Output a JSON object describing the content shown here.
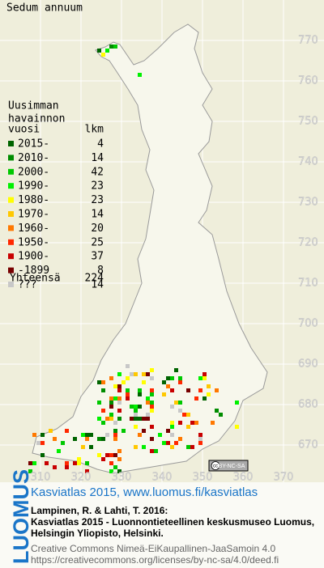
{
  "title": "Sedum annuum",
  "legend": {
    "heading": [
      "Uusimman",
      "havainnon"
    ],
    "year_header": "vuosi",
    "count_header": "lkm",
    "items": [
      {
        "label": "2015-",
        "count": 4,
        "color": "#006400"
      },
      {
        "label": "2010-",
        "count": 14,
        "color": "#008c00"
      },
      {
        "label": "2000-",
        "count": 42,
        "color": "#00c800"
      },
      {
        "label": "1990-",
        "count": 23,
        "color": "#00f000"
      },
      {
        "label": "1980-",
        "count": 23,
        "color": "#ffff00"
      },
      {
        "label": "1970-",
        "count": 14,
        "color": "#ffc800"
      },
      {
        "label": "1960-",
        "count": 20,
        "color": "#ff7800"
      },
      {
        "label": "1950-",
        "count": 25,
        "color": "#ff2800"
      },
      {
        "label": "1900-",
        "count": 37,
        "color": "#c80000"
      },
      {
        "label": "-1899",
        "count": 8,
        "color": "#780000"
      },
      {
        "label": "???",
        "count": 14,
        "color": "#c8c8c8"
      }
    ],
    "total": {
      "label": "Yhteensä",
      "count": 224
    }
  },
  "map": {
    "y_ticks": [
      770,
      760,
      750,
      740,
      730,
      720,
      710,
      700,
      690,
      680,
      670
    ],
    "x_ticks": [
      310,
      320,
      330,
      340,
      350,
      360,
      370
    ],
    "license_badge": {
      "cc": "cc",
      "text": "BY-NC-SA"
    }
  },
  "footer": {
    "logo": "LUOMUS",
    "link": "Kasviatlas 2015, www.luomus.fi/kasviatlas",
    "citation": [
      "Lampinen, R. & Lahti, T. 2016:",
      "Kasviatlas 2015 - Luonnontieteellinen keskusmuseo Luomus,",
      "Helsingin Yliopisto, Helsinki."
    ],
    "license": [
      "Creative Commons Nimeä-EiKaupallinen-JaaSamoin 4.0",
      "https://creativecommons.org/licenses/by-nc-sa/4.0/deed.fi"
    ]
  }
}
